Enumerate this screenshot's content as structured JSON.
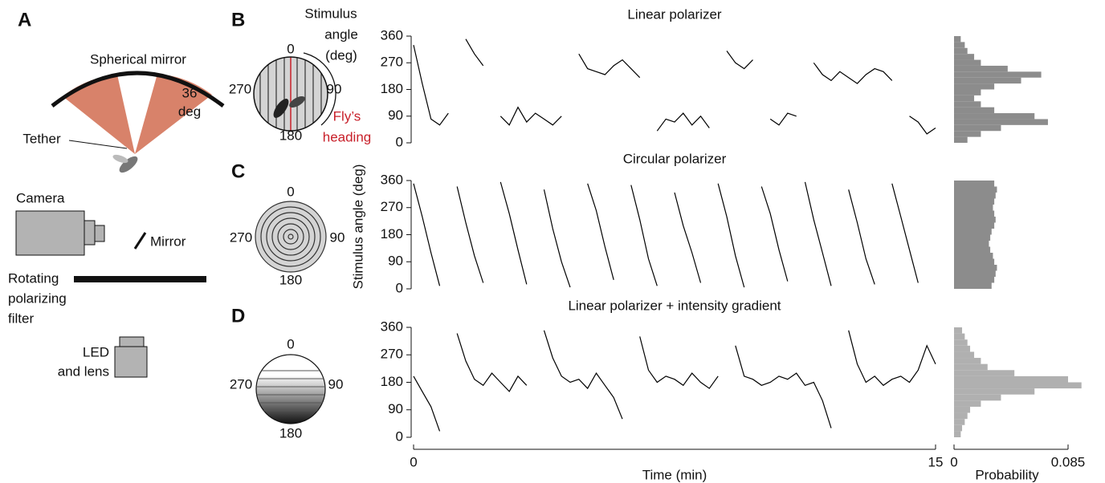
{
  "panels": {
    "A": {
      "letter": "A",
      "mirror": "Spherical mirror",
      "angle": [
        "36",
        "deg"
      ],
      "tether": "Tether",
      "camera": "Camera",
      "small_mirror": "Mirror",
      "filter": [
        "Rotating",
        "polarizing",
        "filter"
      ],
      "led": [
        "LED",
        "and lens"
      ]
    },
    "B": {
      "letter": "B",
      "stimulus": [
        "Stimulus",
        "angle",
        "(deg)"
      ],
      "dial": [
        "0",
        "90",
        "180",
        "270"
      ],
      "heading": [
        "Fly’s",
        "heading"
      ]
    },
    "C": {
      "letter": "C",
      "dial": [
        "0",
        "90",
        "180",
        "270"
      ]
    },
    "D": {
      "letter": "D",
      "dial": [
        "0",
        "90",
        "180",
        "270"
      ]
    }
  },
  "chart_data": [
    {
      "type": "line",
      "title": "Linear polarizer",
      "color": "#000000",
      "xlim": [
        0,
        15
      ],
      "ylim": [
        0,
        360
      ],
      "yticks": [
        0,
        90,
        180,
        270,
        360
      ],
      "x": [
        0,
        0.25,
        0.5,
        0.75,
        1,
        1.25,
        1.5,
        1.75,
        2,
        2.25,
        2.5,
        2.75,
        3,
        3.25,
        3.5,
        3.75,
        4,
        4.25,
        4.5,
        4.75,
        5,
        5.25,
        5.5,
        5.75,
        6,
        6.25,
        6.5,
        6.75,
        7,
        7.25,
        7.5,
        7.75,
        8,
        8.25,
        8.5,
        8.75,
        9,
        9.25,
        9.5,
        9.75,
        10,
        10.25,
        10.5,
        10.75,
        11,
        11.25,
        11.5,
        11.75,
        12,
        12.25,
        12.5,
        12.75,
        13,
        13.25,
        13.5,
        13.75,
        14,
        14.25,
        14.5,
        14.75,
        15
      ],
      "values": [
        330,
        200,
        80,
        60,
        100,
        null,
        350,
        300,
        260,
        null,
        90,
        60,
        120,
        70,
        100,
        80,
        60,
        90,
        null,
        300,
        250,
        240,
        230,
        260,
        280,
        250,
        220,
        null,
        40,
        80,
        70,
        100,
        60,
        90,
        50,
        null,
        310,
        270,
        250,
        280,
        null,
        80,
        60,
        100,
        90,
        null,
        270,
        230,
        210,
        240,
        220,
        200,
        230,
        250,
        240,
        210,
        null,
        90,
        70,
        30,
        50
      ]
    },
    {
      "type": "histogram",
      "color": "#8c8c8c",
      "xlim": [
        0,
        0.085
      ],
      "ylim": [
        0,
        360
      ],
      "bins": [
        0,
        20,
        40,
        60,
        80,
        100,
        120,
        140,
        160,
        180,
        200,
        220,
        240,
        260,
        280,
        300,
        320,
        340,
        360
      ],
      "values": [
        0.01,
        0.02,
        0.035,
        0.07,
        0.06,
        0.03,
        0.02,
        0.015,
        0.02,
        0.03,
        0.05,
        0.065,
        0.04,
        0.02,
        0.015,
        0.01,
        0.008,
        0.005
      ]
    },
    {
      "type": "line",
      "title": "Circular polarizer",
      "ylabel": "Stimulus angle (deg)",
      "color": "#000000",
      "xlim": [
        0,
        15
      ],
      "ylim": [
        0,
        360
      ],
      "yticks": [
        0,
        90,
        180,
        270,
        360
      ],
      "x": [
        0,
        0.25,
        0.5,
        0.75,
        1,
        1.25,
        1.5,
        1.75,
        2,
        2.25,
        2.5,
        2.75,
        3,
        3.25,
        3.5,
        3.75,
        4,
        4.25,
        4.5,
        4.75,
        5,
        5.25,
        5.5,
        5.75,
        6,
        6.25,
        6.5,
        6.75,
        7,
        7.25,
        7.5,
        7.75,
        8,
        8.25,
        8.5,
        8.75,
        9,
        9.25,
        9.5,
        9.75,
        10,
        10.25,
        10.5,
        10.75,
        11,
        11.25,
        11.5,
        11.75,
        12,
        12.25,
        12.5,
        12.75,
        13,
        13.25,
        13.5,
        13.75,
        14,
        14.25,
        14.5,
        14.75,
        15
      ],
      "values": [
        350,
        240,
        120,
        10,
        null,
        340,
        220,
        110,
        20,
        null,
        355,
        250,
        130,
        15,
        null,
        330,
        200,
        90,
        5,
        null,
        350,
        260,
        140,
        30,
        null,
        345,
        230,
        100,
        10,
        null,
        320,
        210,
        120,
        20,
        null,
        350,
        240,
        110,
        5,
        null,
        340,
        250,
        130,
        25,
        null,
        355,
        230,
        120,
        10,
        null,
        330,
        220,
        100,
        15,
        null,
        350,
        240,
        130,
        20,
        null,
        300
      ]
    },
    {
      "type": "histogram",
      "color": "#8c8c8c",
      "xlim": [
        0,
        0.085
      ],
      "ylim": [
        0,
        360
      ],
      "bins": [
        0,
        20,
        40,
        60,
        80,
        100,
        120,
        140,
        160,
        180,
        200,
        220,
        240,
        260,
        280,
        300,
        320,
        340,
        360
      ],
      "values": [
        0.028,
        0.03,
        0.031,
        0.032,
        0.03,
        0.029,
        0.027,
        0.026,
        0.027,
        0.028,
        0.03,
        0.031,
        0.03,
        0.029,
        0.03,
        0.031,
        0.032,
        0.03
      ]
    },
    {
      "type": "line",
      "title": "Linear polarizer + intensity gradient",
      "xlabel": "Time (min)",
      "color": "#000000",
      "xlim": [
        0,
        15
      ],
      "ylim": [
        0,
        360
      ],
      "yticks": [
        0,
        90,
        180,
        270,
        360
      ],
      "xticks": [
        0,
        15
      ],
      "x": [
        0,
        0.25,
        0.5,
        0.75,
        1,
        1.25,
        1.5,
        1.75,
        2,
        2.25,
        2.5,
        2.75,
        3,
        3.25,
        3.5,
        3.75,
        4,
        4.25,
        4.5,
        4.75,
        5,
        5.25,
        5.5,
        5.75,
        6,
        6.25,
        6.5,
        6.75,
        7,
        7.25,
        7.5,
        7.75,
        8,
        8.25,
        8.5,
        8.75,
        9,
        9.25,
        9.5,
        9.75,
        10,
        10.25,
        10.5,
        10.75,
        11,
        11.25,
        11.5,
        11.75,
        12,
        12.25,
        12.5,
        12.75,
        13,
        13.25,
        13.5,
        13.75,
        14,
        14.25,
        14.5,
        14.75,
        15
      ],
      "values": [
        200,
        150,
        100,
        20,
        null,
        340,
        250,
        190,
        170,
        210,
        180,
        150,
        200,
        170,
        null,
        350,
        260,
        200,
        180,
        190,
        160,
        210,
        170,
        130,
        60,
        null,
        330,
        220,
        180,
        200,
        190,
        170,
        210,
        180,
        160,
        200,
        null,
        300,
        200,
        190,
        170,
        180,
        200,
        190,
        210,
        170,
        180,
        120,
        30,
        null,
        350,
        240,
        180,
        200,
        170,
        190,
        200,
        180,
        220,
        300,
        240
      ]
    },
    {
      "type": "histogram",
      "color": "#b0b0b0",
      "xlabel": "Probability",
      "xlim": [
        0,
        0.085
      ],
      "xticks": [
        0,
        0.085
      ],
      "ylim": [
        0,
        360
      ],
      "bins": [
        0,
        20,
        40,
        60,
        80,
        100,
        120,
        140,
        160,
        180,
        200,
        220,
        240,
        260,
        280,
        300,
        320,
        340,
        360
      ],
      "values": [
        0.005,
        0.006,
        0.008,
        0.01,
        0.012,
        0.02,
        0.035,
        0.06,
        0.095,
        0.085,
        0.045,
        0.025,
        0.02,
        0.015,
        0.012,
        0.01,
        0.008,
        0.006
      ]
    }
  ]
}
